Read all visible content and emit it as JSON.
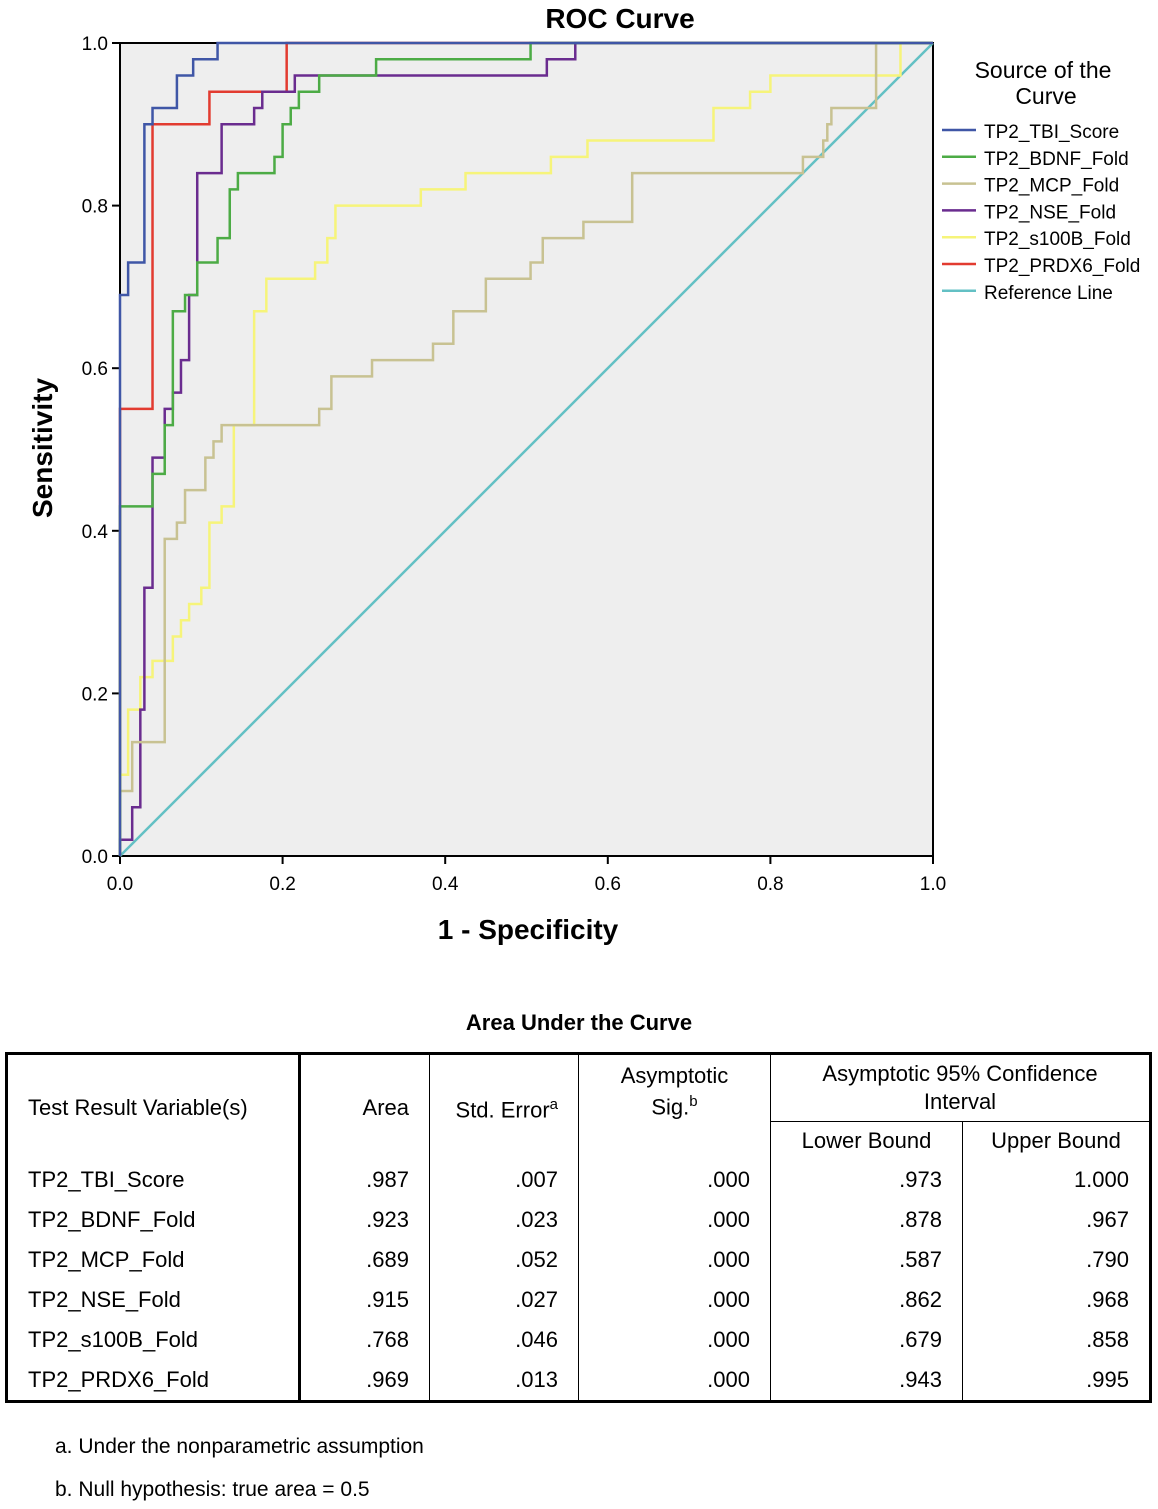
{
  "chart_data": {
    "type": "line",
    "title": "ROC Curve",
    "xlabel": "1 - Specificity",
    "ylabel": "Sensitivity",
    "xlim": [
      0,
      1
    ],
    "ylim": [
      0,
      1
    ],
    "ticks": [
      "0.0",
      "0.2",
      "0.4",
      "0.6",
      "0.8",
      "1.0"
    ],
    "legend_title": "Source of the Curve",
    "legend_position": "right",
    "series": [
      {
        "name": "TP2_TBI_Score",
        "color": "#3f56a6",
        "points": [
          [
            0,
            0
          ],
          [
            0,
            0.69
          ],
          [
            0.01,
            0.69
          ],
          [
            0.01,
            0.73
          ],
          [
            0.03,
            0.73
          ],
          [
            0.03,
            0.9
          ],
          [
            0.04,
            0.9
          ],
          [
            0.04,
            0.92
          ],
          [
            0.07,
            0.92
          ],
          [
            0.07,
            0.96
          ],
          [
            0.09,
            0.96
          ],
          [
            0.09,
            0.98
          ],
          [
            0.12,
            0.98
          ],
          [
            0.12,
            1.0
          ],
          [
            1,
            1
          ]
        ]
      },
      {
        "name": "TP2_BDNF_Fold",
        "color": "#4cab45",
        "points": [
          [
            0,
            0
          ],
          [
            0,
            0.43
          ],
          [
            0.04,
            0.43
          ],
          [
            0.04,
            0.47
          ],
          [
            0.055,
            0.47
          ],
          [
            0.055,
            0.53
          ],
          [
            0.065,
            0.53
          ],
          [
            0.065,
            0.67
          ],
          [
            0.08,
            0.67
          ],
          [
            0.08,
            0.69
          ],
          [
            0.095,
            0.69
          ],
          [
            0.095,
            0.73
          ],
          [
            0.12,
            0.73
          ],
          [
            0.12,
            0.76
          ],
          [
            0.135,
            0.76
          ],
          [
            0.135,
            0.82
          ],
          [
            0.145,
            0.82
          ],
          [
            0.145,
            0.84
          ],
          [
            0.19,
            0.84
          ],
          [
            0.19,
            0.86
          ],
          [
            0.2,
            0.86
          ],
          [
            0.2,
            0.9
          ],
          [
            0.21,
            0.9
          ],
          [
            0.21,
            0.92
          ],
          [
            0.22,
            0.92
          ],
          [
            0.22,
            0.94
          ],
          [
            0.245,
            0.94
          ],
          [
            0.245,
            0.96
          ],
          [
            0.315,
            0.96
          ],
          [
            0.315,
            0.98
          ],
          [
            0.505,
            0.98
          ],
          [
            0.505,
            1.0
          ],
          [
            1,
            1
          ]
        ]
      },
      {
        "name": "TP2_MCP_Fold",
        "color": "#c8c292",
        "points": [
          [
            0,
            0
          ],
          [
            0,
            0.08
          ],
          [
            0.015,
            0.08
          ],
          [
            0.015,
            0.14
          ],
          [
            0.055,
            0.14
          ],
          [
            0.055,
            0.39
          ],
          [
            0.07,
            0.39
          ],
          [
            0.07,
            0.41
          ],
          [
            0.08,
            0.41
          ],
          [
            0.08,
            0.45
          ],
          [
            0.105,
            0.45
          ],
          [
            0.105,
            0.49
          ],
          [
            0.115,
            0.49
          ],
          [
            0.115,
            0.51
          ],
          [
            0.125,
            0.51
          ],
          [
            0.125,
            0.53
          ],
          [
            0.245,
            0.53
          ],
          [
            0.245,
            0.55
          ],
          [
            0.26,
            0.55
          ],
          [
            0.26,
            0.59
          ],
          [
            0.31,
            0.59
          ],
          [
            0.31,
            0.61
          ],
          [
            0.385,
            0.61
          ],
          [
            0.385,
            0.63
          ],
          [
            0.41,
            0.63
          ],
          [
            0.41,
            0.67
          ],
          [
            0.45,
            0.67
          ],
          [
            0.45,
            0.71
          ],
          [
            0.505,
            0.71
          ],
          [
            0.505,
            0.73
          ],
          [
            0.52,
            0.73
          ],
          [
            0.52,
            0.76
          ],
          [
            0.57,
            0.76
          ],
          [
            0.57,
            0.78
          ],
          [
            0.63,
            0.78
          ],
          [
            0.63,
            0.84
          ],
          [
            0.84,
            0.84
          ],
          [
            0.84,
            0.86
          ],
          [
            0.865,
            0.86
          ],
          [
            0.865,
            0.88
          ],
          [
            0.87,
            0.88
          ],
          [
            0.87,
            0.9
          ],
          [
            0.875,
            0.9
          ],
          [
            0.875,
            0.92
          ],
          [
            0.93,
            0.92
          ],
          [
            0.93,
            1.0
          ],
          [
            1,
            1
          ]
        ]
      },
      {
        "name": "TP2_NSE_Fold",
        "color": "#6a2c8f",
        "points": [
          [
            0,
            0
          ],
          [
            0,
            0.02
          ],
          [
            0.015,
            0.02
          ],
          [
            0.015,
            0.06
          ],
          [
            0.025,
            0.06
          ],
          [
            0.025,
            0.18
          ],
          [
            0.03,
            0.18
          ],
          [
            0.03,
            0.33
          ],
          [
            0.04,
            0.33
          ],
          [
            0.04,
            0.49
          ],
          [
            0.055,
            0.49
          ],
          [
            0.055,
            0.55
          ],
          [
            0.065,
            0.55
          ],
          [
            0.065,
            0.57
          ],
          [
            0.075,
            0.57
          ],
          [
            0.075,
            0.61
          ],
          [
            0.085,
            0.61
          ],
          [
            0.085,
            0.69
          ],
          [
            0.095,
            0.69
          ],
          [
            0.095,
            0.84
          ],
          [
            0.125,
            0.84
          ],
          [
            0.125,
            0.9
          ],
          [
            0.165,
            0.9
          ],
          [
            0.165,
            0.92
          ],
          [
            0.175,
            0.92
          ],
          [
            0.175,
            0.94
          ],
          [
            0.215,
            0.94
          ],
          [
            0.215,
            0.96
          ],
          [
            0.525,
            0.96
          ],
          [
            0.525,
            0.98
          ],
          [
            0.56,
            0.98
          ],
          [
            0.56,
            1.0
          ],
          [
            1,
            1
          ]
        ]
      },
      {
        "name": "TP2_s100B_Fold",
        "color": "#f6f47a",
        "points": [
          [
            0,
            0
          ],
          [
            0,
            0.1
          ],
          [
            0.01,
            0.1
          ],
          [
            0.01,
            0.18
          ],
          [
            0.025,
            0.18
          ],
          [
            0.025,
            0.22
          ],
          [
            0.04,
            0.22
          ],
          [
            0.04,
            0.24
          ],
          [
            0.065,
            0.24
          ],
          [
            0.065,
            0.27
          ],
          [
            0.075,
            0.27
          ],
          [
            0.075,
            0.29
          ],
          [
            0.085,
            0.29
          ],
          [
            0.085,
            0.31
          ],
          [
            0.1,
            0.31
          ],
          [
            0.1,
            0.33
          ],
          [
            0.11,
            0.33
          ],
          [
            0.11,
            0.41
          ],
          [
            0.125,
            0.41
          ],
          [
            0.125,
            0.43
          ],
          [
            0.14,
            0.43
          ],
          [
            0.14,
            0.53
          ],
          [
            0.165,
            0.53
          ],
          [
            0.165,
            0.67
          ],
          [
            0.18,
            0.67
          ],
          [
            0.18,
            0.71
          ],
          [
            0.24,
            0.71
          ],
          [
            0.24,
            0.73
          ],
          [
            0.255,
            0.73
          ],
          [
            0.255,
            0.76
          ],
          [
            0.265,
            0.76
          ],
          [
            0.265,
            0.8
          ],
          [
            0.37,
            0.8
          ],
          [
            0.37,
            0.82
          ],
          [
            0.425,
            0.82
          ],
          [
            0.425,
            0.84
          ],
          [
            0.53,
            0.84
          ],
          [
            0.53,
            0.86
          ],
          [
            0.575,
            0.86
          ],
          [
            0.575,
            0.88
          ],
          [
            0.73,
            0.88
          ],
          [
            0.73,
            0.92
          ],
          [
            0.775,
            0.92
          ],
          [
            0.775,
            0.94
          ],
          [
            0.8,
            0.94
          ],
          [
            0.8,
            0.96
          ],
          [
            0.96,
            0.96
          ],
          [
            0.96,
            1.0
          ],
          [
            1,
            1
          ]
        ]
      },
      {
        "name": "TP2_PRDX6_Fold",
        "color": "#e23b30",
        "points": [
          [
            0,
            0
          ],
          [
            0,
            0.55
          ],
          [
            0.04,
            0.55
          ],
          [
            0.04,
            0.9
          ],
          [
            0.11,
            0.9
          ],
          [
            0.11,
            0.94
          ],
          [
            0.205,
            0.94
          ],
          [
            0.205,
            1.0
          ],
          [
            1,
            1
          ]
        ]
      },
      {
        "name": "Reference Line",
        "color": "#63c0c4",
        "points": [
          [
            0,
            0
          ],
          [
            1,
            1
          ]
        ]
      }
    ]
  },
  "auc_table": {
    "title": "Area Under the Curve",
    "header": {
      "variable": "Test Result Variable(s)",
      "area": "Area",
      "std_error": "Std. Error",
      "std_error_note": "a",
      "sig": "Asymptotic Sig.",
      "sig_note": "b",
      "ci": "Asymptotic 95% Confidence Interval",
      "lower": "Lower Bound",
      "upper": "Upper Bound"
    },
    "rows": [
      {
        "variable": "TP2_TBI_Score",
        "area": ".987",
        "std_error": ".007",
        "sig": ".000",
        "lower": ".973",
        "upper": "1.000"
      },
      {
        "variable": "TP2_BDNF_Fold",
        "area": ".923",
        "std_error": ".023",
        "sig": ".000",
        "lower": ".878",
        "upper": ".967"
      },
      {
        "variable": "TP2_MCP_Fold",
        "area": ".689",
        "std_error": ".052",
        "sig": ".000",
        "lower": ".587",
        "upper": ".790"
      },
      {
        "variable": "TP2_NSE_Fold",
        "area": ".915",
        "std_error": ".027",
        "sig": ".000",
        "lower": ".862",
        "upper": ".968"
      },
      {
        "variable": "TP2_s100B_Fold",
        "area": ".768",
        "std_error": ".046",
        "sig": ".000",
        "lower": ".679",
        "upper": ".858"
      },
      {
        "variable": "TP2_PRDX6_Fold",
        "area": ".969",
        "std_error": ".013",
        "sig": ".000",
        "lower": ".943",
        "upper": ".995"
      }
    ],
    "footnotes": [
      "a. Under the nonparametric assumption",
      "b. Null hypothesis: true area = 0.5"
    ]
  }
}
